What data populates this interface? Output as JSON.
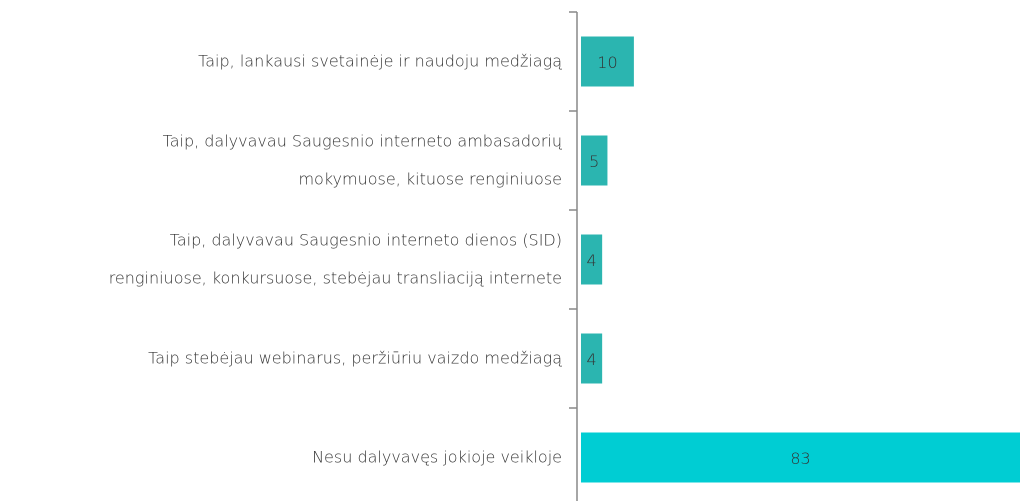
{
  "chart_data": {
    "type": "barh",
    "categories": [
      "Taip, lankausi svetainėje ir naudoju medžiagą",
      "Taip, dalyvavau Saugesnio interneto ambasadorių\nmokymuose, kituose renginiuose",
      "Taip, dalyvavau Saugesnio interneto dienos (SID)\nrenginiuose, konkursuose, stebėjau transliaciją internete",
      "Taip stebėjau webinarus, peržiūriu vaizdo medžiagą",
      "Nesu dalyvavęs jokioje veikloje"
    ],
    "values": [
      10,
      5,
      4,
      4,
      83
    ],
    "colors": [
      "#2bb5b0",
      "#2bb5b0",
      "#2bb5b0",
      "#2bb5b0",
      "#00cdd3"
    ]
  }
}
